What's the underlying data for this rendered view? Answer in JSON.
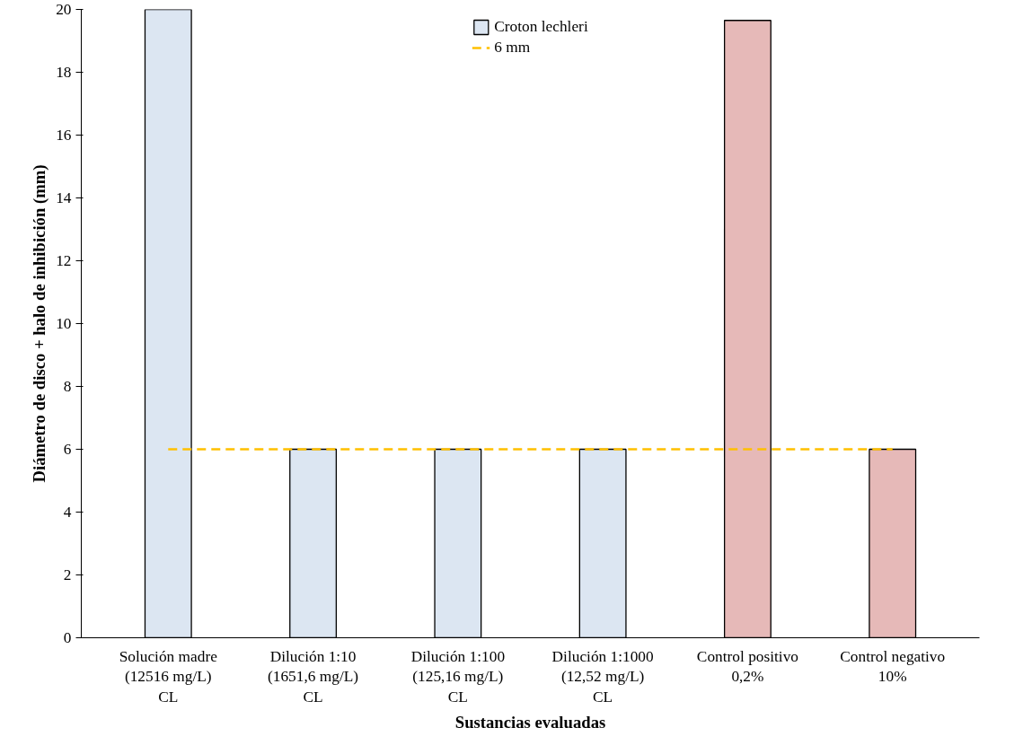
{
  "chart_data": {
    "type": "bar",
    "xlabel": "Sustancias evaluadas",
    "ylabel": "Diámetro de disco + halo de inhibición (mm)",
    "categories": [
      "Solución madre\n(12516 mg/L)\nCL",
      "Dilución 1:10\n(1651,6 mg/L)\nCL",
      "Dilución 1:100\n(125,16 mg/L)\nCL",
      "Dilución 1:1000\n(12,52 mg/L)\nCL",
      "Control positivo\n0,2%",
      "Control negativo\n10%"
    ],
    "series": [
      {
        "name": "Croton lechleri",
        "colors": [
          "#dce6f2",
          "#dce6f2",
          "#dce6f2",
          "#dce6f2",
          "#e6b9b8",
          "#e6b9b8"
        ],
        "values": [
          20,
          6,
          6,
          6,
          19.65,
          6
        ]
      },
      {
        "name": "6 mm",
        "type": "line",
        "color": "#ffc000",
        "line_style": "dashed",
        "values": [
          6,
          6,
          6,
          6,
          6,
          6
        ]
      }
    ],
    "ylim": [
      0,
      20
    ],
    "yticks": [
      0,
      2,
      4,
      6,
      8,
      10,
      12,
      14,
      16,
      18,
      20
    ],
    "grid": false,
    "legend": "top"
  }
}
